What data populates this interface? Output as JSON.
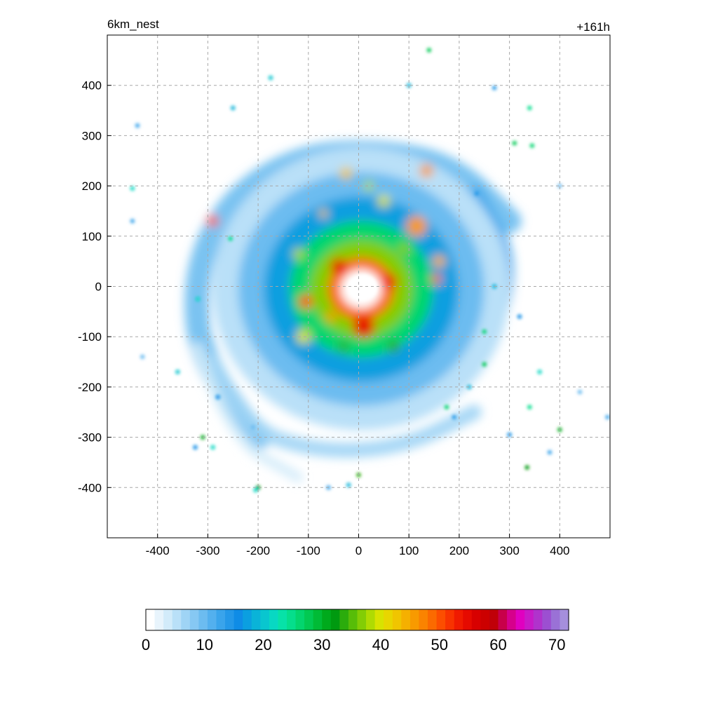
{
  "chart_data": {
    "type": "heatmap",
    "title_left": "6km_nest",
    "title_right": "+161h",
    "xlabel": "",
    "ylabel": "",
    "xlim": [
      -500,
      500
    ],
    "ylim": [
      -500,
      500
    ],
    "x_ticks": [
      -400,
      -300,
      -200,
      -100,
      0,
      100,
      200,
      300,
      400
    ],
    "y_ticks": [
      400,
      300,
      200,
      100,
      0,
      -100,
      -200,
      -300,
      -400
    ],
    "grid": true,
    "grid_style": "dashed",
    "colorbar": {
      "orientation": "horizontal",
      "range": [
        0,
        72
      ],
      "ticks": [
        0,
        10,
        20,
        30,
        40,
        50,
        60,
        70
      ],
      "colors": [
        "#ffffff",
        "#e8f4fc",
        "#d2ebfa",
        "#b9e0f8",
        "#9fd4f5",
        "#86c8f3",
        "#6cbcf0",
        "#53b0ee",
        "#3aa4eb",
        "#2498e8",
        "#0f8ce6",
        "#0b9fe0",
        "#0ab3d8",
        "#09c6cf",
        "#08d8c3",
        "#07e2a8",
        "#05de8c",
        "#03d56e",
        "#02c952",
        "#01bb36",
        "#00aa1c",
        "#009a10",
        "#2bac0c",
        "#57bd08",
        "#83cd05",
        "#afdb02",
        "#d8e300",
        "#e8d600",
        "#f0c500",
        "#f5b000",
        "#f89a00",
        "#fa8300",
        "#fb6a00",
        "#fc4e00",
        "#f83300",
        "#f01a00",
        "#e60a00",
        "#d80000",
        "#cc0000",
        "#c00008",
        "#c8004a",
        "#d6008c",
        "#e000c0",
        "#c81ac8",
        "#b033cc",
        "#9c4fd1",
        "#9a71d6",
        "#a58fdc"
      ]
    },
    "rings": [
      {
        "r": 40,
        "value": 0
      },
      {
        "r": 65,
        "value": 48
      },
      {
        "r": 100,
        "value": 36
      },
      {
        "r": 140,
        "value": 26
      },
      {
        "r": 190,
        "value": 17
      },
      {
        "r": 240,
        "value": 10
      },
      {
        "r": 290,
        "value": 5
      }
    ],
    "bands": [
      {
        "points": [
          [
            -200,
            -300
          ],
          [
            -310,
            -170
          ],
          [
            -330,
            20
          ],
          [
            -260,
            170
          ],
          [
            -120,
            260
          ],
          [
            40,
            270
          ],
          [
            190,
            240
          ],
          [
            300,
            130
          ]
        ],
        "width": 48,
        "value": 9
      },
      {
        "points": [
          [
            -120,
            -240
          ],
          [
            20,
            -270
          ],
          [
            160,
            -220
          ],
          [
            270,
            -100
          ],
          [
            300,
            60
          ],
          [
            230,
            180
          ]
        ],
        "width": 38,
        "value": 12
      },
      {
        "points": [
          [
            -290,
            -150
          ],
          [
            -230,
            -280
          ],
          [
            -80,
            -330
          ],
          [
            90,
            -320
          ],
          [
            230,
            -250
          ]
        ],
        "width": 30,
        "value": 6
      },
      {
        "points": [
          [
            -230,
            120
          ],
          [
            -130,
            210
          ],
          [
            0,
            225
          ],
          [
            120,
            210
          ]
        ],
        "width": 22,
        "value": 14
      },
      {
        "points": [
          [
            -320,
            -120
          ],
          [
            -260,
            -300
          ],
          [
            -120,
            -380
          ]
        ],
        "width": 20,
        "value": 4
      }
    ],
    "cells": [
      {
        "x": -40,
        "y": 40,
        "r": 16,
        "value": 54
      },
      {
        "x": 60,
        "y": 10,
        "r": 16,
        "value": 53
      },
      {
        "x": 10,
        "y": -80,
        "r": 22,
        "value": 55
      },
      {
        "x": -105,
        "y": -30,
        "r": 14,
        "value": 50
      },
      {
        "x": 115,
        "y": 120,
        "r": 20,
        "value": 46
      },
      {
        "x": 160,
        "y": 50,
        "r": 12,
        "value": 44
      },
      {
        "x": 155,
        "y": 15,
        "r": 10,
        "value": 48
      },
      {
        "x": -120,
        "y": 65,
        "r": 11,
        "value": 38
      },
      {
        "x": -25,
        "y": 225,
        "r": 12,
        "value": 42
      },
      {
        "x": 135,
        "y": 230,
        "r": 13,
        "value": 45
      },
      {
        "x": -70,
        "y": 145,
        "r": 8,
        "value": 42
      },
      {
        "x": 50,
        "y": 170,
        "r": 12,
        "value": 40
      },
      {
        "x": -290,
        "y": 130,
        "r": 11,
        "value": 50
      },
      {
        "x": -110,
        "y": -100,
        "r": 14,
        "value": 40
      },
      {
        "x": 70,
        "y": -120,
        "r": 12,
        "value": 33
      },
      {
        "x": -30,
        "y": -120,
        "r": 10,
        "value": 34
      },
      {
        "x": 20,
        "y": 200,
        "r": 10,
        "value": 38
      },
      {
        "x": 90,
        "y": 75,
        "r": 12,
        "value": 36
      },
      {
        "x": -55,
        "y": -60,
        "r": 10,
        "value": 46
      }
    ],
    "specks": [
      {
        "x": 140,
        "y": 470,
        "value": 28
      },
      {
        "x": 100,
        "y": 400,
        "value": 18
      },
      {
        "x": 340,
        "y": 355,
        "value": 24
      },
      {
        "x": 310,
        "y": 285,
        "value": 27
      },
      {
        "x": 345,
        "y": 280,
        "value": 26
      },
      {
        "x": 270,
        "y": 395,
        "value": 14
      },
      {
        "x": -450,
        "y": 195,
        "value": 22
      },
      {
        "x": -440,
        "y": 320,
        "value": 12
      },
      {
        "x": -250,
        "y": 355,
        "value": 18
      },
      {
        "x": -175,
        "y": 415,
        "value": 20
      },
      {
        "x": -360,
        "y": -170,
        "value": 20
      },
      {
        "x": -310,
        "y": -300,
        "value": 30
      },
      {
        "x": -290,
        "y": -320,
        "value": 22
      },
      {
        "x": -200,
        "y": -400,
        "value": 32
      },
      {
        "x": -280,
        "y": -220,
        "value": 16
      },
      {
        "x": -255,
        "y": 95,
        "value": 24
      },
      {
        "x": -320,
        "y": -25,
        "value": 22
      },
      {
        "x": 0,
        "y": -375,
        "value": 34
      },
      {
        "x": -20,
        "y": -395,
        "value": 18
      },
      {
        "x": 250,
        "y": -90,
        "value": 26
      },
      {
        "x": 250,
        "y": -155,
        "value": 28
      },
      {
        "x": 175,
        "y": -240,
        "value": 26
      },
      {
        "x": 340,
        "y": -240,
        "value": 24
      },
      {
        "x": 360,
        "y": -170,
        "value": 22
      },
      {
        "x": 400,
        "y": -285,
        "value": 30
      },
      {
        "x": 335,
        "y": -360,
        "value": 32
      },
      {
        "x": 300,
        "y": -295,
        "value": 16
      },
      {
        "x": 380,
        "y": -330,
        "value": 12
      },
      {
        "x": 320,
        "y": -60,
        "value": 16
      },
      {
        "x": 270,
        "y": 0,
        "value": 18
      },
      {
        "x": 220,
        "y": -200,
        "value": 18
      },
      {
        "x": -450,
        "y": 130,
        "value": 12
      },
      {
        "x": 440,
        "y": -210,
        "value": 10
      },
      {
        "x": 495,
        "y": -260,
        "value": 12
      },
      {
        "x": 235,
        "y": 185,
        "value": 14
      },
      {
        "x": 400,
        "y": 200,
        "value": 10
      },
      {
        "x": -210,
        "y": -280,
        "value": 10
      },
      {
        "x": -430,
        "y": -140,
        "value": 10
      },
      {
        "x": -60,
        "y": -400,
        "value": 12
      },
      {
        "x": -325,
        "y": -320,
        "value": 16
      },
      {
        "x": 190,
        "y": -260,
        "value": 14
      },
      {
        "x": -205,
        "y": -405,
        "value": 22
      }
    ]
  }
}
